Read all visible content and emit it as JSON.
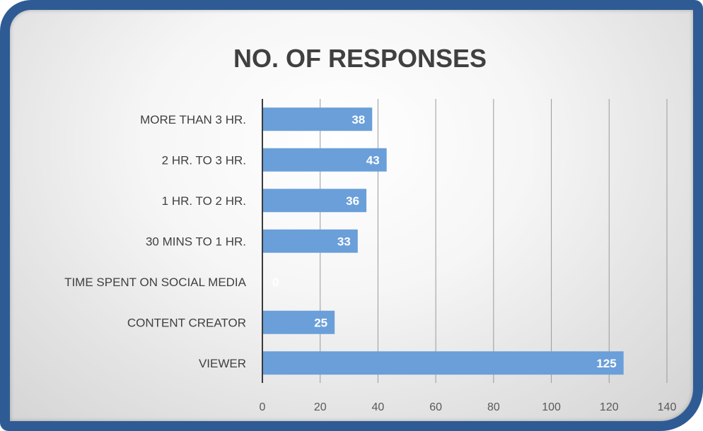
{
  "chart_data": {
    "type": "bar",
    "orientation": "horizontal",
    "title": "NO. OF RESPONSES",
    "categories": [
      "MORE THAN 3 HR.",
      "2 HR. TO 3 HR.",
      "1 HR. TO 2 HR.",
      "30 MINS TO 1 HR.",
      "TIME SPENT ON SOCIAL MEDIA",
      "CONTENT CREATOR",
      "VIEWER"
    ],
    "values": [
      38,
      43,
      36,
      33,
      0,
      25,
      125
    ],
    "xlim": [
      0,
      140
    ],
    "x_ticks": [
      "0",
      "20",
      "40",
      "60",
      "80",
      "100",
      "120",
      "140"
    ],
    "grid": "vertical",
    "data_labels": true,
    "colors": {
      "bar": "#6a9fd9",
      "frame": "#2f5b95",
      "text": "#404040",
      "grid": "#9a9a9a"
    }
  }
}
